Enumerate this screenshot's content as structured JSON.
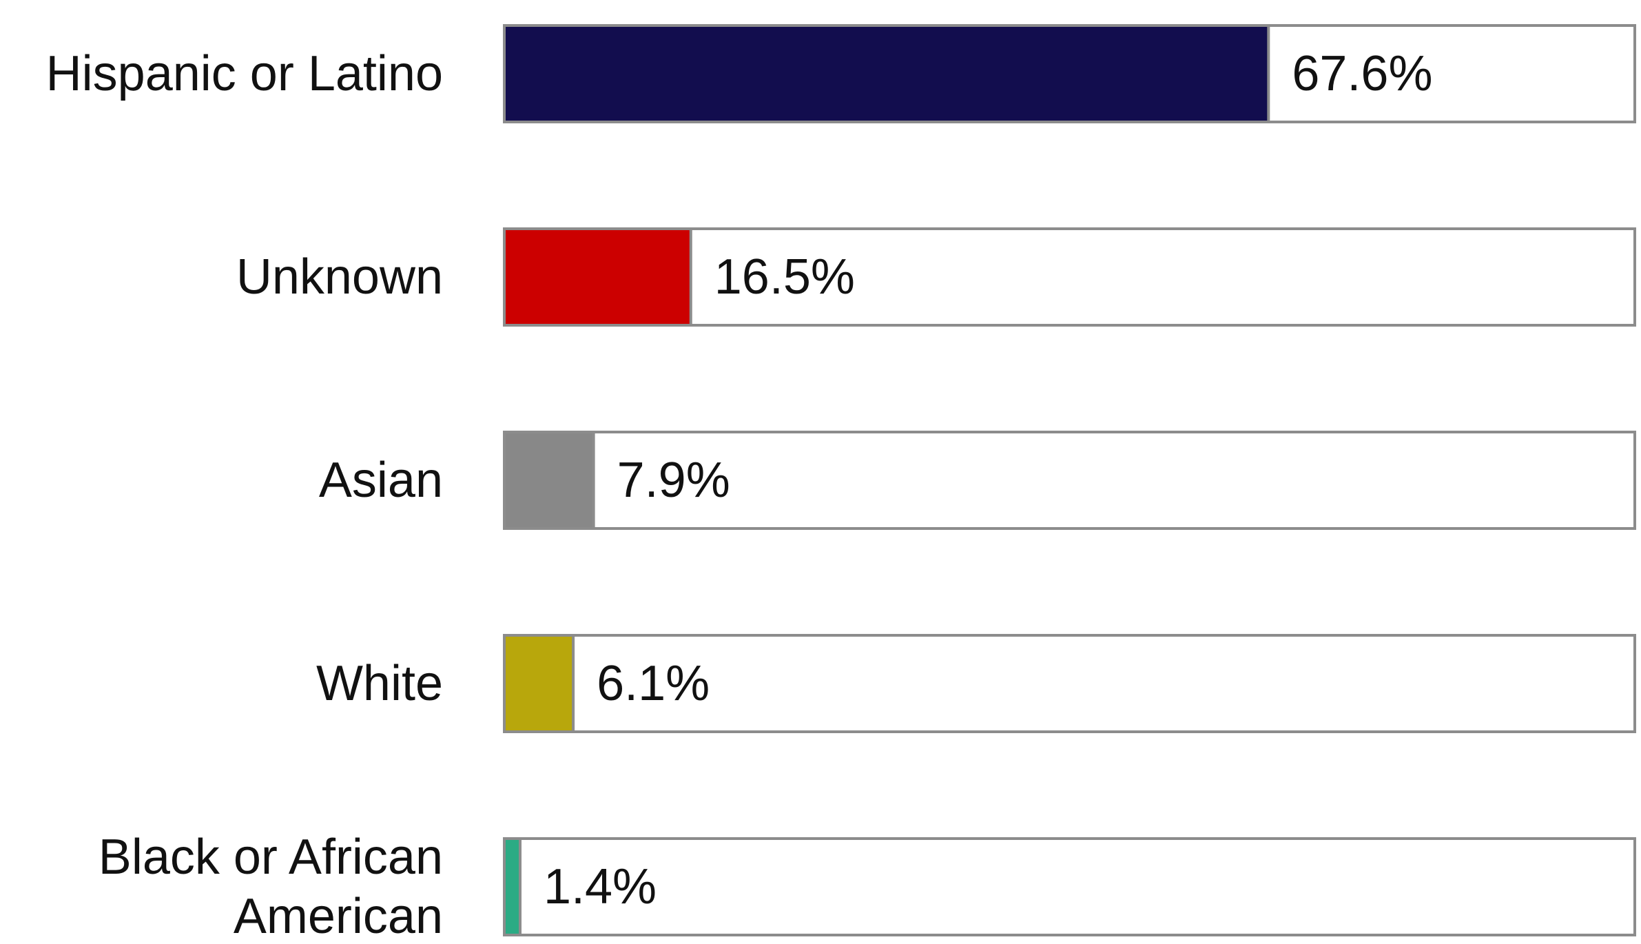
{
  "chart_data": {
    "type": "bar",
    "orientation": "horizontal",
    "categories": [
      [
        "Hispanic or Latino"
      ],
      [
        "Unknown"
      ],
      [
        "Asian"
      ],
      [
        "White"
      ],
      [
        "Black or African",
        "American"
      ]
    ],
    "values": [
      67.6,
      16.5,
      7.9,
      6.1,
      1.4
    ],
    "value_labels": [
      "67.6%",
      "16.5%",
      "7.9%",
      "6.1%",
      "1.4%"
    ],
    "colors": [
      "#120d4e",
      "#cc0000",
      "#888888",
      "#b8a70c",
      "#2bab84"
    ],
    "track_border_color": "#8c8c8c",
    "xlim": [
      0,
      100
    ],
    "grid": false,
    "legend": "none",
    "title": "",
    "xlabel": "",
    "ylabel": ""
  }
}
